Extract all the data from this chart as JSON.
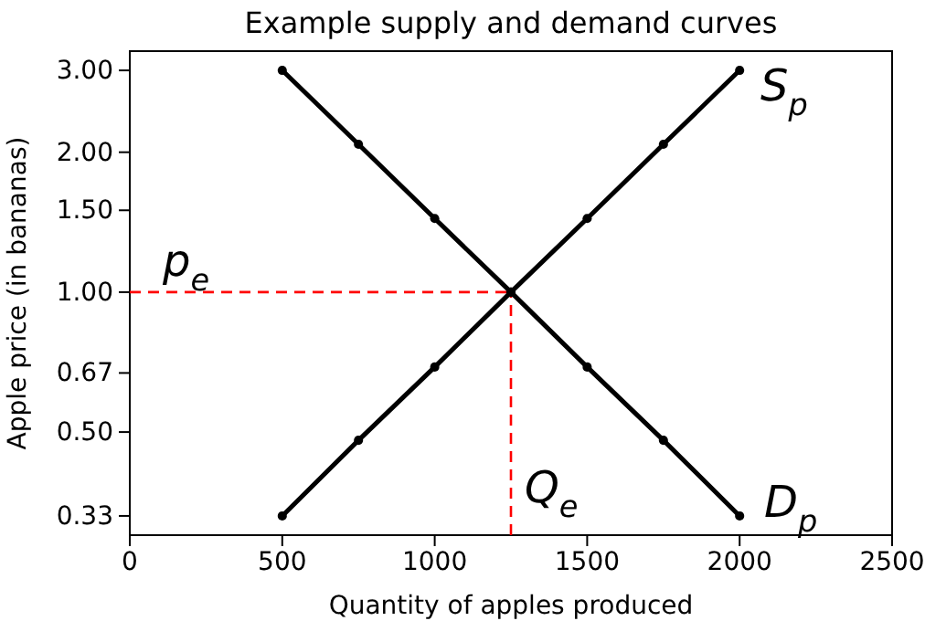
{
  "chart_data": {
    "type": "line",
    "title": "Example supply and demand curves",
    "xlabel": "Quantity of apples produced",
    "ylabel": "Apple price (in bananas)",
    "xlim": [
      0,
      2500
    ],
    "xticks": [
      0,
      500,
      1000,
      1500,
      2000,
      2500
    ],
    "ylim": [
      0.3,
      3.3
    ],
    "log": "y",
    "yticks": [
      {
        "value": 0.33,
        "label": "0.33"
      },
      {
        "value": 0.5,
        "label": "0.50"
      },
      {
        "value": 0.67,
        "label": "0.67"
      },
      {
        "value": 1,
        "label": "1.00"
      },
      {
        "value": 1.5,
        "label": "1.50"
      },
      {
        "value": 2,
        "label": "2.00"
      },
      {
        "value": 3,
        "label": "3.00"
      }
    ],
    "grid": false,
    "marker": "circle",
    "line_style": "solid",
    "series": [
      {
        "color": "#000000",
        "x": [
          500,
          750,
          1000,
          1250,
          1500,
          1750,
          2000
        ],
        "values": [
          0.33,
          0.48,
          0.69,
          1,
          1.44,
          2.08,
          3
        ]
      },
      {
        "color": "#000000",
        "x": [
          500,
          750,
          1000,
          1250,
          1500,
          1750,
          2000
        ],
        "values": [
          3,
          2.08,
          1.44,
          1,
          0.69,
          0.48,
          0.33
        ]
      }
    ],
    "ref_lines": [
      {
        "axis": "y",
        "value": 1,
        "color": "#ff0000",
        "line_style": "dashed"
      },
      {
        "axis": "x",
        "value": 1250,
        "color": "#ff0000",
        "line_style": "dashed"
      }
    ],
    "annotations": [
      "S$_{p}$",
      "D$_{p}$",
      "p$_{e}$",
      "Q$_{e}$"
    ]
  }
}
